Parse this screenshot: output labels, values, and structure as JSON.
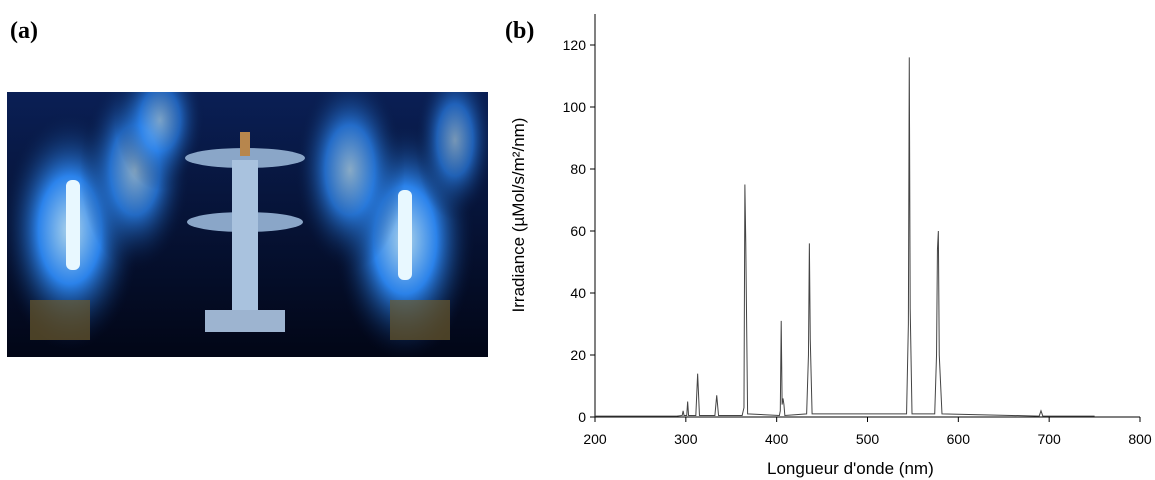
{
  "panels": [
    {
      "label": "(a)"
    },
    {
      "label": "(b)"
    }
  ],
  "chart_data": {
    "type": "line",
    "xlabel": "Longueur d'onde (nm)",
    "ylabel": "Irradiance (µMol/s/m²/nm)",
    "x": [
      200,
      290,
      296,
      297,
      298,
      301,
      302,
      303,
      311,
      313,
      315,
      332,
      334,
      336,
      362,
      364,
      365,
      366,
      368,
      403,
      404,
      405,
      406,
      407,
      408,
      409,
      433,
      435,
      436,
      437,
      439,
      543,
      545,
      546,
      547,
      549,
      574,
      576,
      577,
      578,
      579,
      582,
      689,
      691,
      693,
      750
    ],
    "values": [
      0.3,
      0.3,
      0.5,
      2,
      0.5,
      0.5,
      5,
      0.5,
      0.5,
      14,
      0.5,
      0.5,
      7,
      0.5,
      0.5,
      3,
      75,
      56,
      1,
      0.5,
      2,
      31,
      4,
      6,
      4,
      0.5,
      1,
      20,
      56,
      25,
      1,
      1,
      30,
      116,
      35,
      1,
      1,
      20,
      54,
      60,
      20,
      1,
      0.3,
      2,
      0.3,
      0.3
    ],
    "color": "#444444",
    "xlim": [
      200,
      800
    ],
    "xticks": [
      200,
      300,
      400,
      500,
      600,
      700,
      800
    ],
    "ylim": [
      0,
      130
    ],
    "yticks": [
      0,
      20,
      40,
      60,
      80,
      100,
      120
    ]
  }
}
